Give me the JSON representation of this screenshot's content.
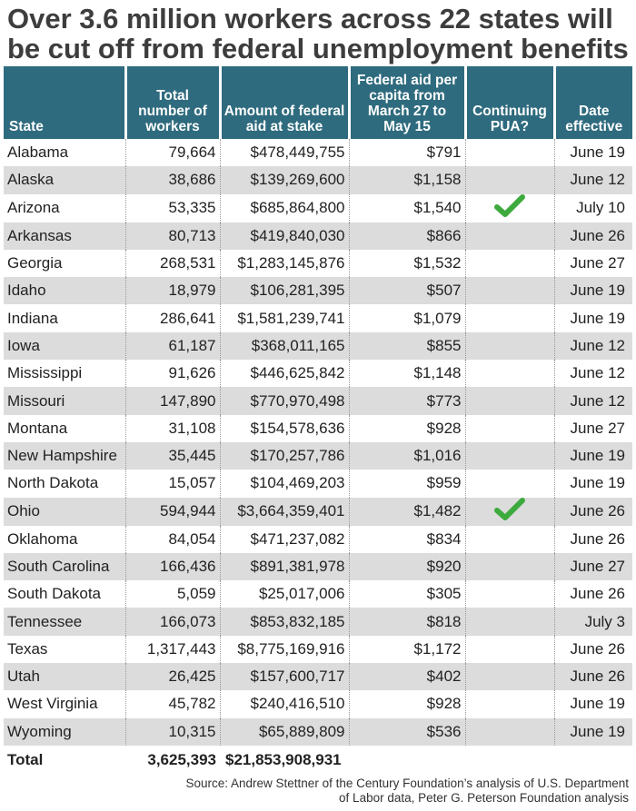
{
  "title": "Over 3.6 million workers across 22 states will be cut off from federal unemployment benefits",
  "headers": {
    "state": "State",
    "workers": "Total number of workers",
    "amount": "Amount of federal aid at stake",
    "per_capita": "Federal aid per capita from March 27 to May 15",
    "pua": "Continuing PUA?",
    "date": "Date effective"
  },
  "rows": [
    {
      "state": "Alabama",
      "workers": "79,664",
      "amount": "$478,449,755",
      "per_capita": "$791",
      "pua": false,
      "date": "June 19"
    },
    {
      "state": "Alaska",
      "workers": "38,686",
      "amount": "$139,269,600",
      "per_capita": "$1,158",
      "pua": false,
      "date": "June 12"
    },
    {
      "state": "Arizona",
      "workers": "53,335",
      "amount": "$685,864,800",
      "per_capita": "$1,540",
      "pua": true,
      "date": "July 10"
    },
    {
      "state": "Arkansas",
      "workers": "80,713",
      "amount": "$419,840,030",
      "per_capita": "$866",
      "pua": false,
      "date": "June 26"
    },
    {
      "state": "Georgia",
      "workers": "268,531",
      "amount": "$1,283,145,876",
      "per_capita": "$1,532",
      "pua": false,
      "date": "June 27"
    },
    {
      "state": "Idaho",
      "workers": "18,979",
      "amount": "$106,281,395",
      "per_capita": "$507",
      "pua": false,
      "date": "June 19"
    },
    {
      "state": "Indiana",
      "workers": "286,641",
      "amount": "$1,581,239,741",
      "per_capita": "$1,079",
      "pua": false,
      "date": "June 19"
    },
    {
      "state": "Iowa",
      "workers": "61,187",
      "amount": "$368,011,165",
      "per_capita": "$855",
      "pua": false,
      "date": "June 12"
    },
    {
      "state": "Mississippi",
      "workers": "91,626",
      "amount": "$446,625,842",
      "per_capita": "$1,148",
      "pua": false,
      "date": "June 12"
    },
    {
      "state": "Missouri",
      "workers": "147,890",
      "amount": "$770,970,498",
      "per_capita": "$773",
      "pua": false,
      "date": "June 12"
    },
    {
      "state": "Montana",
      "workers": "31,108",
      "amount": "$154,578,636",
      "per_capita": "$928",
      "pua": false,
      "date": "June 27"
    },
    {
      "state": "New Hampshire",
      "workers": "35,445",
      "amount": "$170,257,786",
      "per_capita": "$1,016",
      "pua": false,
      "date": "June 19"
    },
    {
      "state": "North Dakota",
      "workers": "15,057",
      "amount": "$104,469,203",
      "per_capita": "$959",
      "pua": false,
      "date": "June 19"
    },
    {
      "state": "Ohio",
      "workers": "594,944",
      "amount": "$3,664,359,401",
      "per_capita": "$1,482",
      "pua": true,
      "date": "June 26"
    },
    {
      "state": "Oklahoma",
      "workers": "84,054",
      "amount": "$471,237,082",
      "per_capita": "$834",
      "pua": false,
      "date": "June 26"
    },
    {
      "state": "South Carolina",
      "workers": "166,436",
      "amount": "$891,381,978",
      "per_capita": "$920",
      "pua": false,
      "date": "June 27"
    },
    {
      "state": "South Dakota",
      "workers": "5,059",
      "amount": "$25,017,006",
      "per_capita": "$305",
      "pua": false,
      "date": "June 26"
    },
    {
      "state": "Tennessee",
      "workers": "166,073",
      "amount": "$853,832,185",
      "per_capita": "$818",
      "pua": false,
      "date": "July 3"
    },
    {
      "state": "Texas",
      "workers": "1,317,443",
      "amount": "$8,775,169,916",
      "per_capita": "$1,172",
      "pua": false,
      "date": "June 26"
    },
    {
      "state": "Utah",
      "workers": "26,425",
      "amount": "$157,600,717",
      "per_capita": "$402",
      "pua": false,
      "date": "June 26"
    },
    {
      "state": "West Virginia",
      "workers": "45,782",
      "amount": "$240,416,510",
      "per_capita": "$928",
      "pua": false,
      "date": "June 19"
    },
    {
      "state": "Wyoming",
      "workers": "10,315",
      "amount": "$65,889,809",
      "per_capita": "$536",
      "pua": false,
      "date": "June 19"
    }
  ],
  "total": {
    "label": "Total",
    "workers": "3,625,393",
    "amount": "$21,853,908,931"
  },
  "source": "Source: Andrew Stettner of the Century Foundation’s analysis of U.S. Department of Labor data, Peter G. Peterson Foundation analysis",
  "colors": {
    "header_bg": "#2f6b7e",
    "stripe": "#dcdcdc",
    "check": "#3daa3d",
    "title": "#3d3d3d"
  },
  "icons": {
    "pua_yes": "checkmark-icon"
  },
  "chart_data": {
    "type": "table",
    "title": "Over 3.6 million workers across 22 states will be cut off from federal unemployment benefits",
    "columns": [
      "State",
      "Total number of workers",
      "Amount of federal aid at stake",
      "Federal aid per capita from March 27 to May 15",
      "Continuing PUA?",
      "Date effective"
    ],
    "rows": [
      [
        "Alabama",
        79664,
        478449755,
        791,
        false,
        "June 19"
      ],
      [
        "Alaska",
        38686,
        139269600,
        1158,
        false,
        "June 12"
      ],
      [
        "Arizona",
        53335,
        685864800,
        1540,
        true,
        "July 10"
      ],
      [
        "Arkansas",
        80713,
        419840030,
        866,
        false,
        "June 26"
      ],
      [
        "Georgia",
        268531,
        1283145876,
        1532,
        false,
        "June 27"
      ],
      [
        "Idaho",
        18979,
        106281395,
        507,
        false,
        "June 19"
      ],
      [
        "Indiana",
        286641,
        1581239741,
        1079,
        false,
        "June 19"
      ],
      [
        "Iowa",
        61187,
        368011165,
        855,
        false,
        "June 12"
      ],
      [
        "Mississippi",
        91626,
        446625842,
        1148,
        false,
        "June 12"
      ],
      [
        "Missouri",
        147890,
        770970498,
        773,
        false,
        "June 12"
      ],
      [
        "Montana",
        31108,
        154578636,
        928,
        false,
        "June 27"
      ],
      [
        "New Hampshire",
        35445,
        170257786,
        1016,
        false,
        "June 19"
      ],
      [
        "North Dakota",
        15057,
        104469203,
        959,
        false,
        "June 19"
      ],
      [
        "Ohio",
        594944,
        3664359401,
        1482,
        true,
        "June 26"
      ],
      [
        "Oklahoma",
        84054,
        471237082,
        834,
        false,
        "June 26"
      ],
      [
        "South Carolina",
        166436,
        891381978,
        920,
        false,
        "June 27"
      ],
      [
        "South Dakota",
        5059,
        25017006,
        305,
        false,
        "June 26"
      ],
      [
        "Tennessee",
        166073,
        853832185,
        818,
        false,
        "July 3"
      ],
      [
        "Texas",
        1317443,
        8775169916,
        1172,
        false,
        "June 26"
      ],
      [
        "Utah",
        26425,
        157600717,
        402,
        false,
        "June 26"
      ],
      [
        "West Virginia",
        45782,
        240416510,
        928,
        false,
        "June 19"
      ],
      [
        "Wyoming",
        10315,
        65889809,
        536,
        false,
        "June 19"
      ]
    ],
    "total": [
      "Total",
      3625393,
      21853908931
    ]
  }
}
